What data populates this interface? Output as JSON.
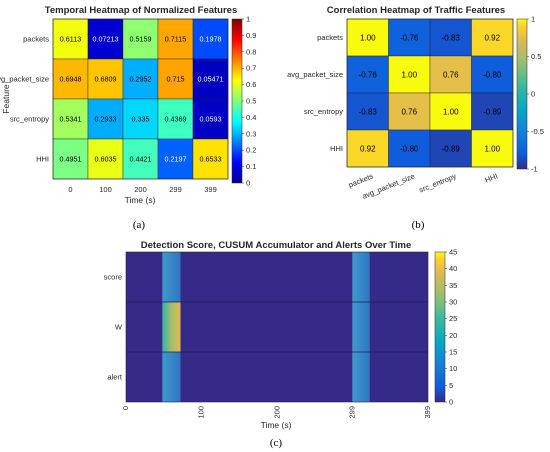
{
  "chart_data": [
    {
      "id": "a",
      "type": "heatmap",
      "title": "Temporal Heatmap of Normalized Features",
      "xlabel": "Time (s)",
      "ylabel": "Feature",
      "x_ticks": [
        "0",
        "100",
        "200",
        "299",
        "399"
      ],
      "y_categories": [
        "packets",
        "avg_packet_size",
        "src_entropy",
        "HHI"
      ],
      "values": [
        [
          0.6113,
          0.07213,
          0.5159,
          0.7115,
          0.1978
        ],
        [
          0.6948,
          0.6809,
          0.2952,
          0.715,
          0.05471
        ],
        [
          0.5341,
          0.2933,
          0.335,
          0.4369,
          0.0593
        ],
        [
          0.4951,
          0.6035,
          0.4421,
          0.2197,
          0.6533
        ]
      ],
      "labels": [
        [
          "0.6113",
          "0.07213",
          "0.5159",
          "0.7115",
          "0.1978"
        ],
        [
          "0.6948",
          "0.6809",
          "0.2952",
          "0.715",
          "0.05471"
        ],
        [
          "0.5341",
          "0.2933",
          "0.335",
          "0.4369",
          "0.0593"
        ],
        [
          "0.4951",
          "0.6035",
          "0.4421",
          "0.2197",
          "0.6533"
        ]
      ],
      "colormap": "jet",
      "clim": [
        0,
        1
      ],
      "colorbar_ticks": [
        "0",
        "0.1",
        "0.2",
        "0.3",
        "0.4",
        "0.5",
        "0.6",
        "0.7",
        "0.8",
        "0.9",
        "1"
      ],
      "panel_label": "(a)"
    },
    {
      "id": "b",
      "type": "heatmap",
      "title": "Correlation Heatmap of Traffic Features",
      "x_categories": [
        "packets",
        "avg_packet_size",
        "src_entropy",
        "HHI"
      ],
      "y_categories": [
        "packets",
        "avg_packet_size",
        "src_entropy",
        "HHI"
      ],
      "values": [
        [
          1.0,
          -0.76,
          -0.83,
          0.92
        ],
        [
          -0.76,
          1.0,
          0.76,
          -0.8
        ],
        [
          -0.83,
          0.76,
          1.0,
          -0.89
        ],
        [
          0.92,
          -0.8,
          -0.89,
          1.0
        ]
      ],
      "labels": [
        [
          "1.00",
          "-0.76",
          "-0.83",
          "0.92"
        ],
        [
          "-0.76",
          "1.00",
          "0.76",
          "-0.80"
        ],
        [
          "-0.83",
          "0.76",
          "1.00",
          "-0.89"
        ],
        [
          "0.92",
          "-0.80",
          "-0.89",
          "1.00"
        ]
      ],
      "colormap": "parula",
      "clim": [
        -1,
        1
      ],
      "colorbar_ticks": [
        "-1",
        "-0.5",
        "0",
        "0.5",
        "1"
      ],
      "panel_label": "(b)"
    },
    {
      "id": "c",
      "type": "heatmap",
      "title": "Detection Score, CUSUM Accumulator and Alerts Over Time",
      "xlabel": "Time (s)",
      "x_ticks": [
        "0",
        "100",
        "200",
        "299",
        "399"
      ],
      "x_tick_values": [
        0,
        100,
        200,
        299,
        399
      ],
      "xlim": [
        0,
        399
      ],
      "y_categories": [
        "score",
        "W",
        "alert"
      ],
      "bands": [
        {
          "row": "score",
          "x_start": 48,
          "x_end": 72,
          "value": 6
        },
        {
          "row": "W",
          "x_start": 48,
          "x_end": 72,
          "value": 30
        },
        {
          "row": "alert",
          "x_start": 48,
          "x_end": 72,
          "value": 8
        },
        {
          "row": "score",
          "x_start": 299,
          "x_end": 322,
          "value": 6
        },
        {
          "row": "W",
          "x_start": 299,
          "x_end": 322,
          "value": 6
        },
        {
          "row": "alert",
          "x_start": 299,
          "x_end": 322,
          "value": 6
        }
      ],
      "colormap": "parula",
      "clim": [
        0,
        45
      ],
      "colorbar_ticks": [
        "0",
        "5",
        "10",
        "15",
        "20",
        "25",
        "30",
        "35",
        "40",
        "45"
      ],
      "panel_label": "(c)"
    }
  ]
}
